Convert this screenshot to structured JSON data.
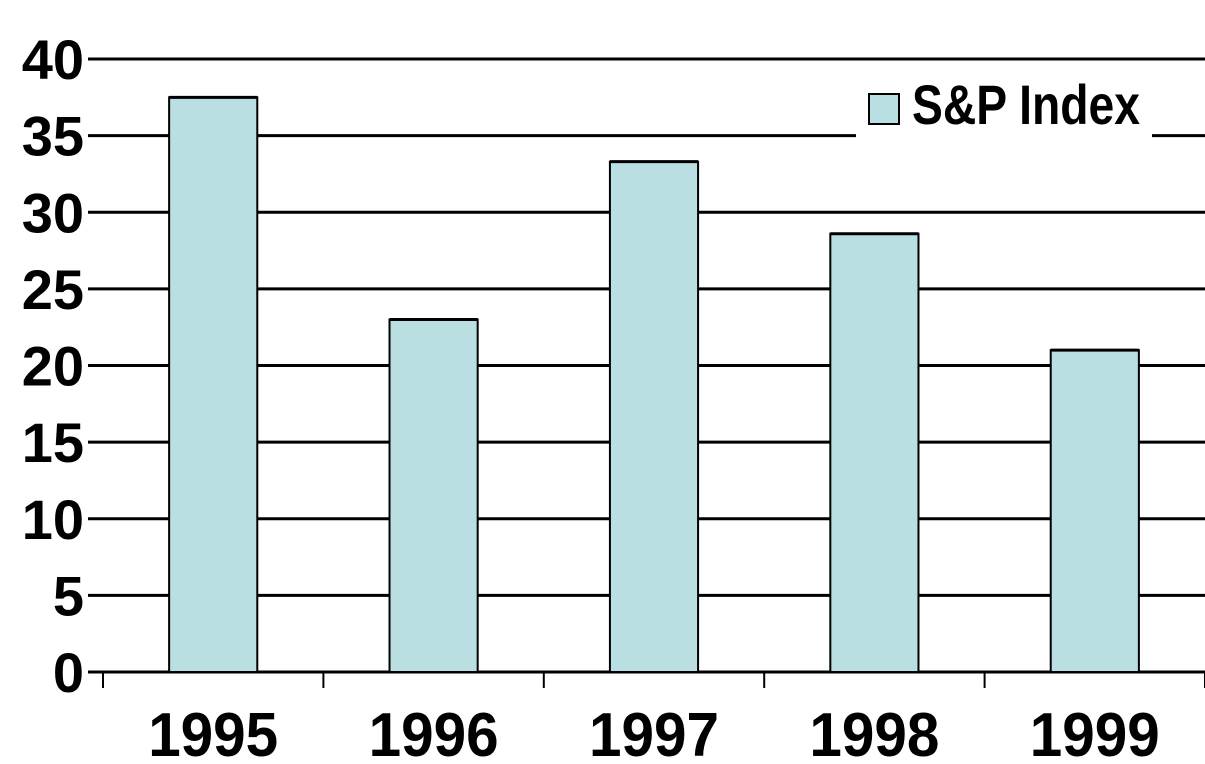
{
  "chart_data": {
    "type": "bar",
    "categories": [
      "1995",
      "1996",
      "1997",
      "1998",
      "1999"
    ],
    "series": [
      {
        "name": "S&P Index",
        "values": [
          37.5,
          23,
          33.3,
          28.6,
          21
        ]
      }
    ],
    "ylim": [
      0,
      40
    ],
    "yticks": [
      0,
      5,
      10,
      15,
      20,
      25,
      30,
      35,
      40
    ],
    "grid": true,
    "legend": "top-right",
    "colors": {
      "bar_fill": "#b9dfe3",
      "bar_stroke": "#000000",
      "grid": "#000000"
    }
  }
}
